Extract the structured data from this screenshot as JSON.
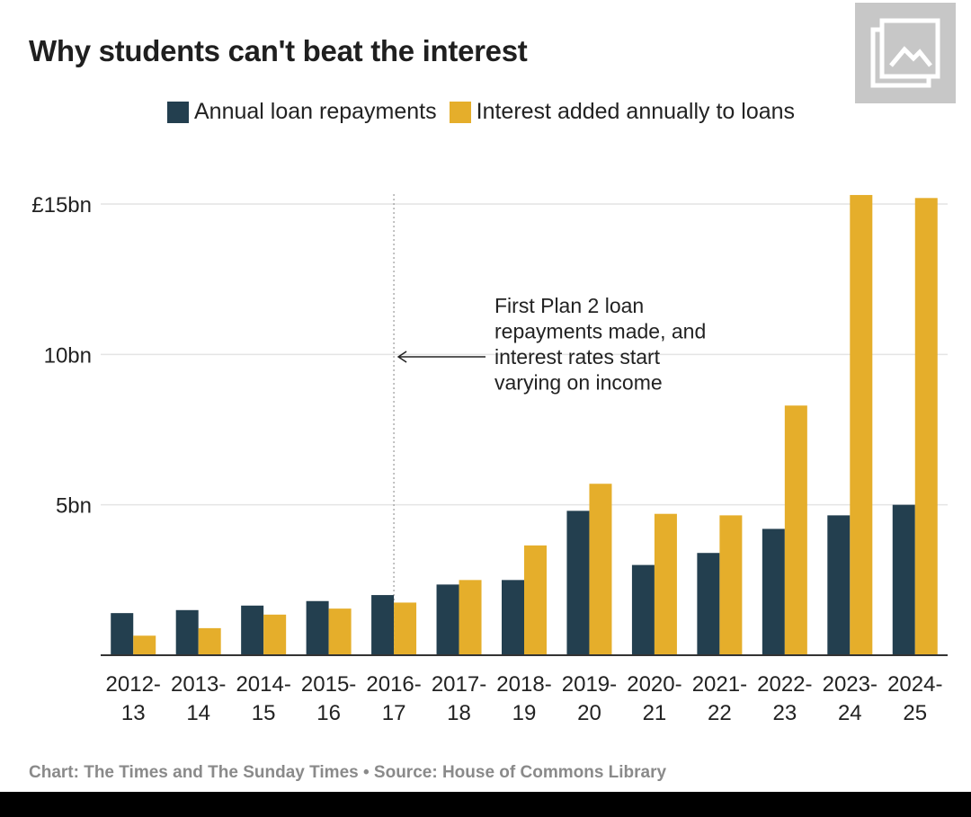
{
  "title": "Why students can't beat the interest",
  "legend": [
    {
      "label": "Annual loan repayments",
      "color": "#233f4f"
    },
    {
      "label": "Interest added annually to loans",
      "color": "#e5ae2b"
    }
  ],
  "annotation": {
    "lines": [
      "First Plan 2 loan",
      "repayments made, and",
      "interest rates start",
      "varying on income"
    ],
    "category": "2016-17"
  },
  "footer": "Chart: The Times and The Sunday Times • Source: House of Commons Library",
  "icon": "image-gallery-icon",
  "chart_data": {
    "type": "bar",
    "categories": [
      "2012-13",
      "2013-14",
      "2014-15",
      "2015-16",
      "2016-17",
      "2017-18",
      "2018-19",
      "2019-20",
      "2020-21",
      "2021-22",
      "2022-23",
      "2023-24",
      "2024-25"
    ],
    "category_lines": [
      [
        "2012-",
        "13"
      ],
      [
        "2013-",
        "14"
      ],
      [
        "2014-",
        "15"
      ],
      [
        "2015-",
        "16"
      ],
      [
        "2016-",
        "17"
      ],
      [
        "2017-",
        "18"
      ],
      [
        "2018-",
        "19"
      ],
      [
        "2019-",
        "20"
      ],
      [
        "2020-",
        "21"
      ],
      [
        "2021-",
        "22"
      ],
      [
        "2022-",
        "23"
      ],
      [
        "2023-",
        "24"
      ],
      [
        "2024-",
        "25"
      ]
    ],
    "series": [
      {
        "name": "Annual loan repayments",
        "color": "#233f4f",
        "values": [
          1.4,
          1.5,
          1.65,
          1.8,
          2.0,
          2.35,
          2.5,
          4.8,
          3.0,
          3.4,
          4.2,
          4.65,
          5.0
        ]
      },
      {
        "name": "Interest added annually to loans",
        "color": "#e5ae2b",
        "values": [
          0.65,
          0.9,
          1.35,
          1.55,
          1.75,
          2.5,
          3.65,
          5.7,
          4.7,
          4.65,
          8.3,
          15.3,
          15.2
        ]
      }
    ],
    "y_ticks": [
      {
        "value": 15,
        "label": "£15bn"
      },
      {
        "value": 10,
        "label": "10bn"
      },
      {
        "value": 5,
        "label": "5bn"
      }
    ],
    "ylim": [
      0,
      15.3
    ],
    "grid": true,
    "legend_position": "top"
  }
}
